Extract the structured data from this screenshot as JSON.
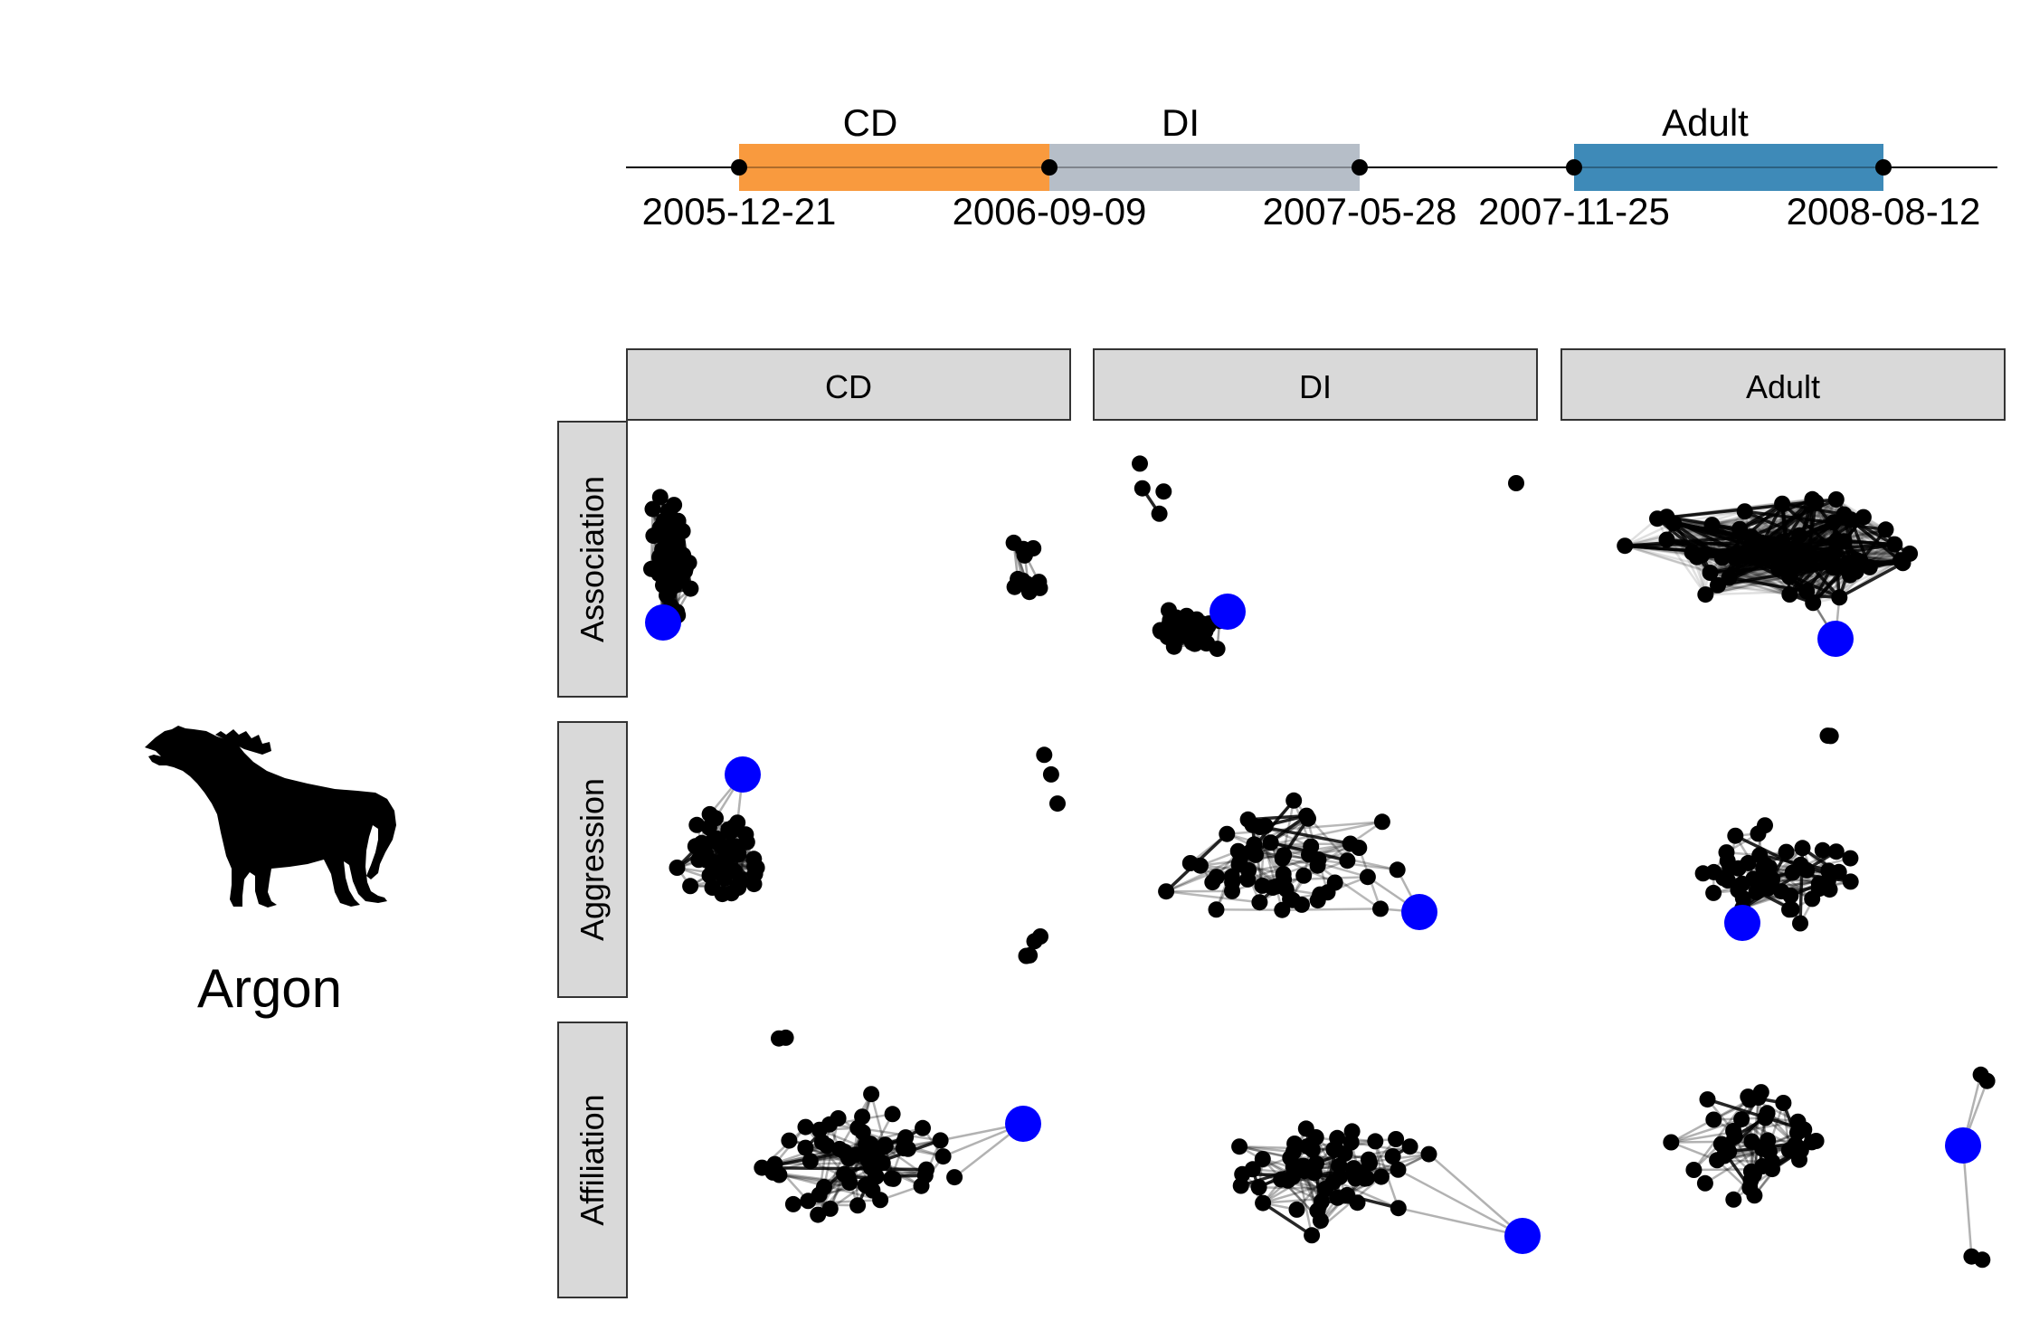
{
  "timeline": {
    "periods": [
      {
        "label": "CD",
        "start": "2005-12-21",
        "end": "2006-09-09",
        "color": "#F99A3E"
      },
      {
        "label": "DI",
        "start": "2006-09-09",
        "end": "2007-05-28",
        "color": "#B6BEC8"
      },
      {
        "label": "Adult",
        "start": "2007-11-25",
        "end": "2008-08-12",
        "color": "#3E8AB8"
      }
    ],
    "date_labels": [
      "2005-12-21",
      "2006-09-09",
      "2007-05-28",
      "2007-11-25",
      "2008-08-12"
    ]
  },
  "individual": {
    "name": "Argon",
    "silhouette": "hyena-silhouette-icon"
  },
  "grid": {
    "columns": [
      "CD",
      "DI",
      "Adult"
    ],
    "rows": [
      "Association",
      "Aggression",
      "Affiliation"
    ]
  },
  "colors": {
    "focal_node": "#0000FF",
    "node": "#000000",
    "strip_fill": "#D9D9D9",
    "strip_border": "#333333"
  }
}
